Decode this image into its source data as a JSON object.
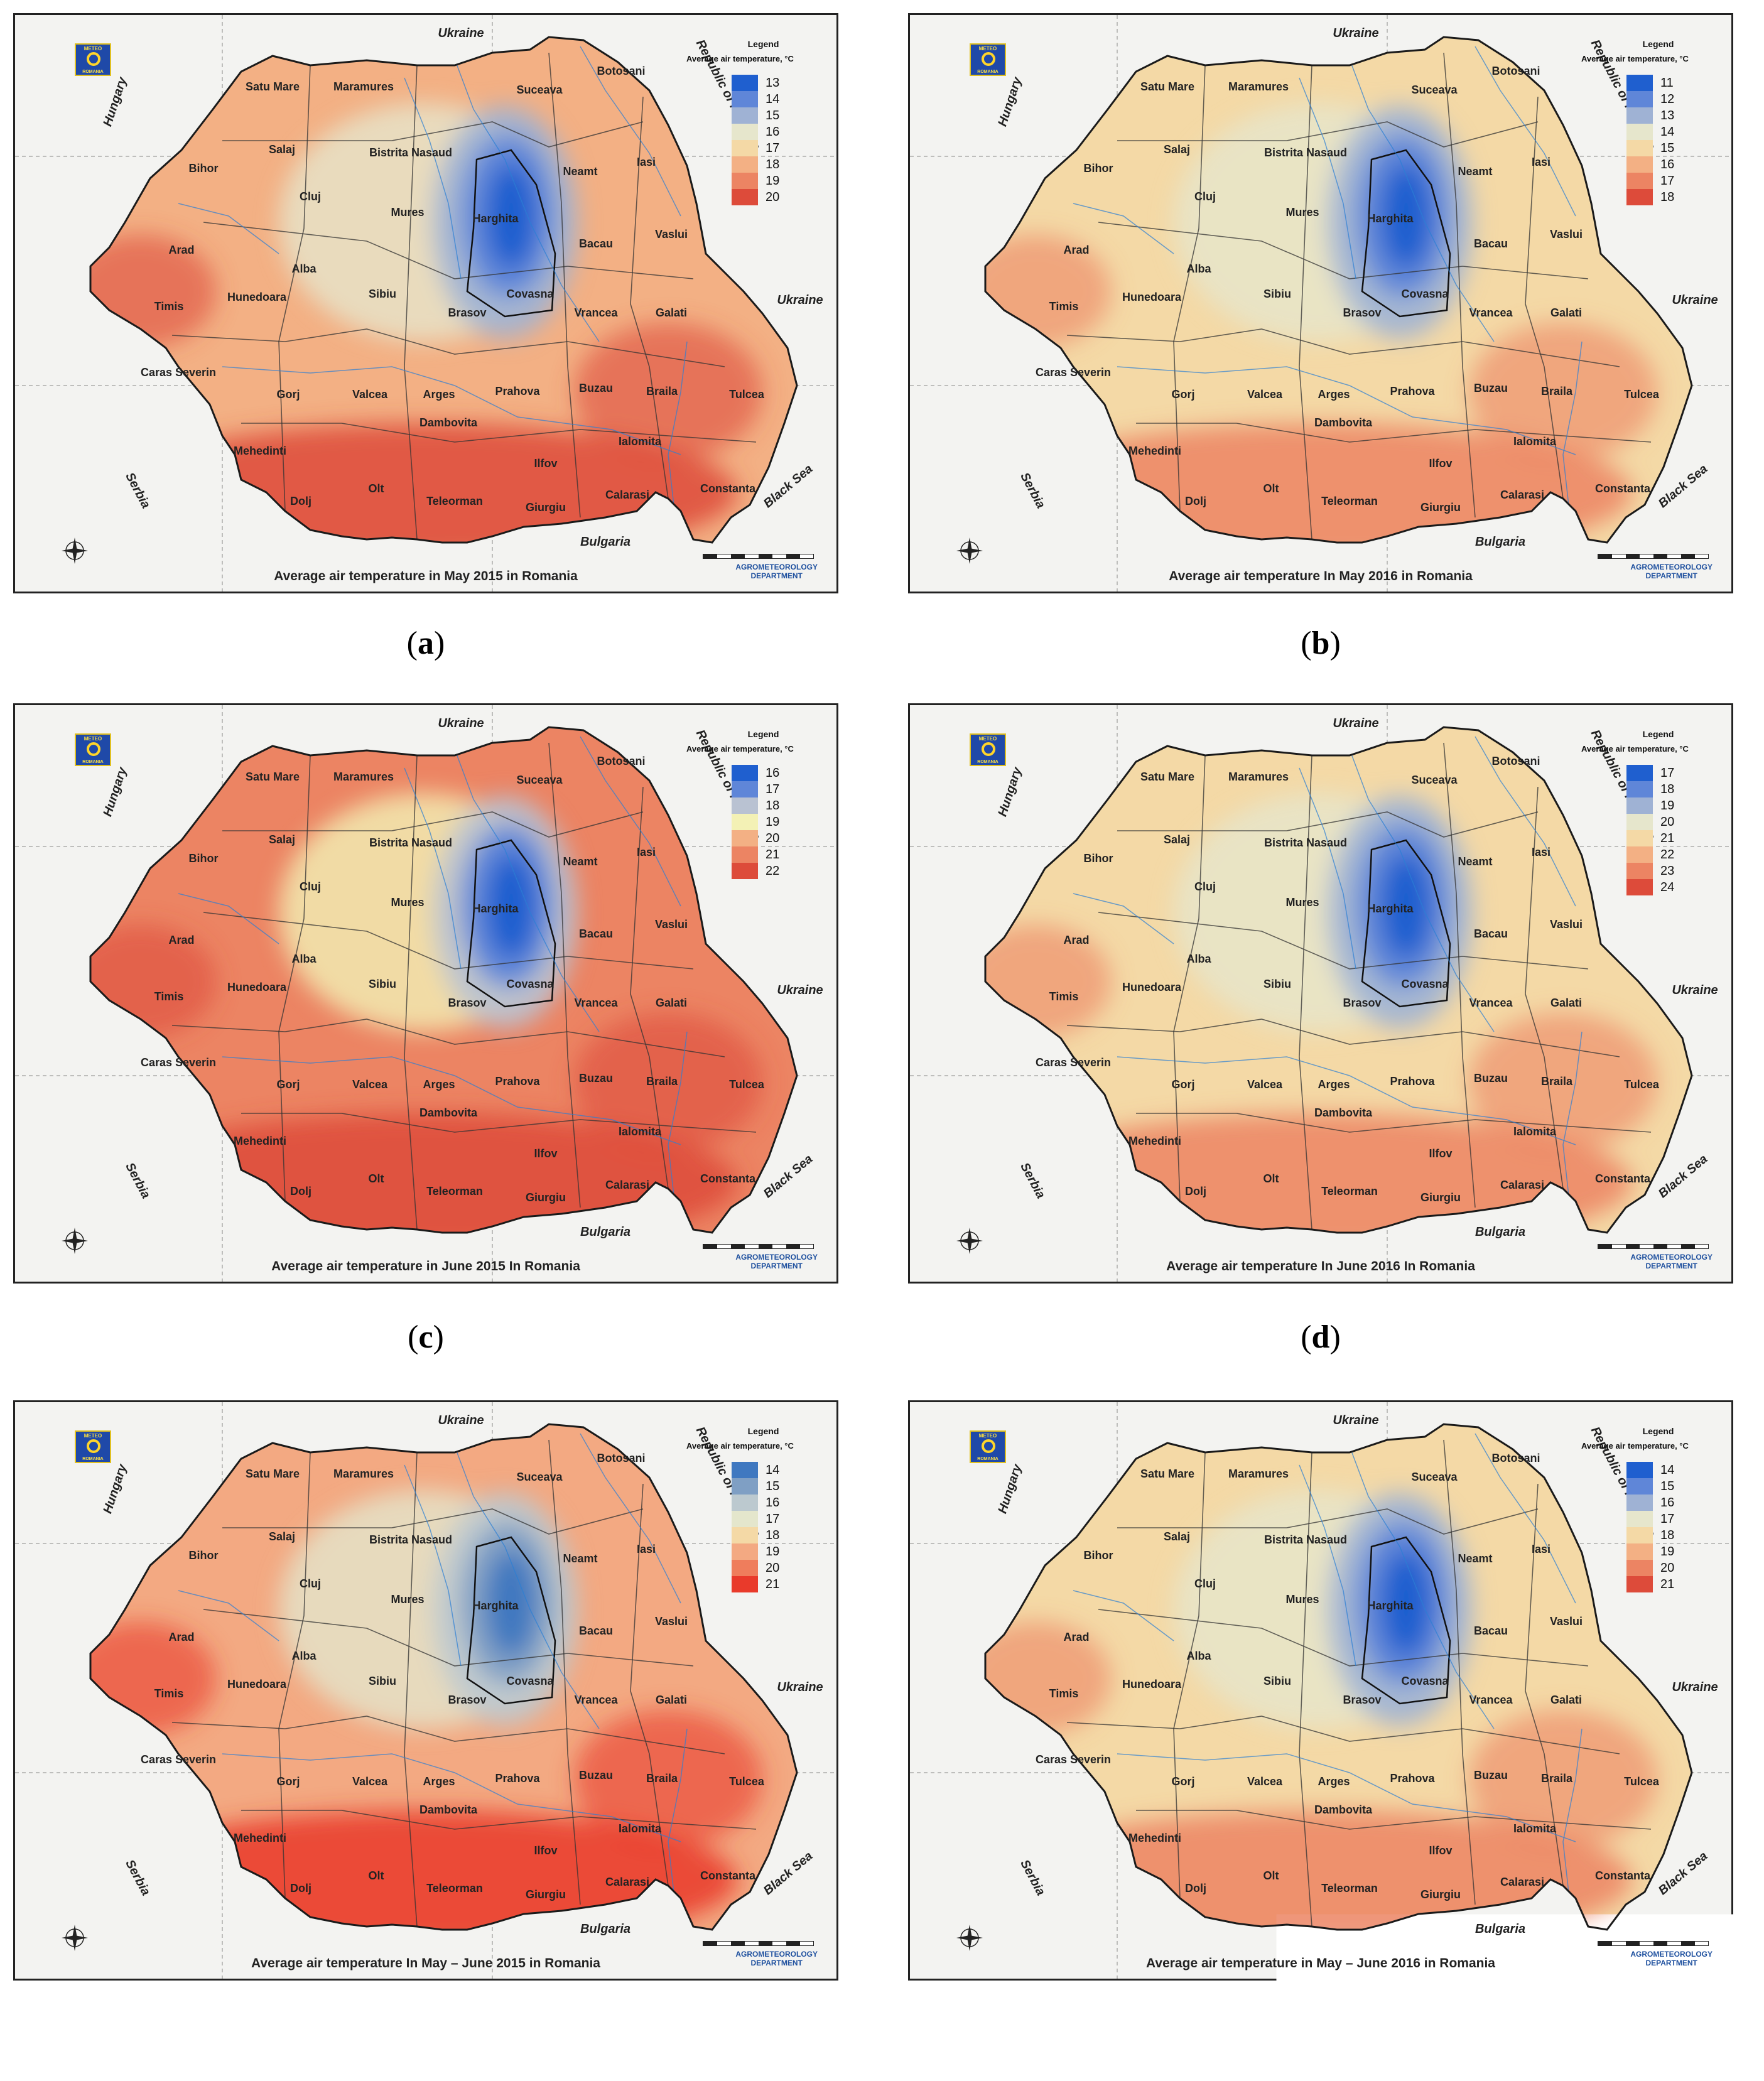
{
  "panels": [
    {
      "letter": "a",
      "caption": "(a)",
      "title": "Average air temperature in May 2015 in Romania",
      "legend": {
        "title": "Legend",
        "subtitle": "Average air temperature, °C",
        "classes": [
          {
            "v": "13",
            "c": "#1f5fcf"
          },
          {
            "v": "14",
            "c": "#5f86d8"
          },
          {
            "v": "15",
            "c": "#9fb2d4"
          },
          {
            "v": "16",
            "c": "#e6e6cc"
          },
          {
            "v": "17",
            "c": "#f4d9a6"
          },
          {
            "v": "18",
            "c": "#f3b084"
          },
          {
            "v": "19",
            "c": "#ec8463"
          },
          {
            "v": "20",
            "c": "#dd4b3a"
          }
        ]
      },
      "dominant_temp": "18",
      "coldest_temp": "13",
      "warmest_temp": "20"
    },
    {
      "letter": "b",
      "caption": "(b)",
      "title": "Average air temperature In May 2016 in Romania",
      "legend": {
        "title": "Legend",
        "subtitle": "Average air temperature, °C",
        "classes": [
          {
            "v": "11",
            "c": "#1f5fcf"
          },
          {
            "v": "12",
            "c": "#5f86d8"
          },
          {
            "v": "13",
            "c": "#9fb2d4"
          },
          {
            "v": "14",
            "c": "#e6e6cc"
          },
          {
            "v": "15",
            "c": "#f4d9a6"
          },
          {
            "v": "16",
            "c": "#f3b084"
          },
          {
            "v": "17",
            "c": "#ec8463"
          },
          {
            "v": "18",
            "c": "#dd4b3a"
          }
        ]
      },
      "dominant_temp": "15",
      "coldest_temp": "11",
      "warmest_temp": "17"
    },
    {
      "letter": "c",
      "caption": "(c)",
      "title": "Average air temperature in June 2015 In Romania",
      "legend": {
        "title": "Legend",
        "subtitle": "Average air temperature, °C",
        "classes": [
          {
            "v": "16",
            "c": "#1f5fcf"
          },
          {
            "v": "17",
            "c": "#5f86d8"
          },
          {
            "v": "18",
            "c": "#b9c2d2"
          },
          {
            "v": "19",
            "c": "#f3f1b5"
          },
          {
            "v": "20",
            "c": "#f3b084"
          },
          {
            "v": "21",
            "c": "#ec8463"
          },
          {
            "v": "22",
            "c": "#dd4b3a"
          }
        ]
      },
      "dominant_temp": "21",
      "coldest_temp": "16",
      "warmest_temp": "22"
    },
    {
      "letter": "d",
      "caption": "(d)",
      "title": "Average air temperature In June 2016 In Romania",
      "legend": {
        "title": "Legend",
        "subtitle": "Average air temperature, °C",
        "classes": [
          {
            "v": "17",
            "c": "#1f5fcf"
          },
          {
            "v": "18",
            "c": "#5f86d8"
          },
          {
            "v": "19",
            "c": "#9fb2d4"
          },
          {
            "v": "20",
            "c": "#e6e6cc"
          },
          {
            "v": "21",
            "c": "#f4d9a6"
          },
          {
            "v": "22",
            "c": "#f3b084"
          },
          {
            "v": "23",
            "c": "#ec8463"
          },
          {
            "v": "24",
            "c": "#dd4b3a"
          }
        ]
      },
      "dominant_temp": "21",
      "coldest_temp": "17",
      "warmest_temp": "23"
    },
    {
      "letter": "e",
      "caption": "(e)",
      "title": "Average air temperature In May – June 2015 in Romania",
      "legend": {
        "title": "Legend",
        "subtitle": "Average air temperature, °C",
        "classes": [
          {
            "v": "14",
            "c": "#3f78c0"
          },
          {
            "v": "15",
            "c": "#7f9fc4"
          },
          {
            "v": "16",
            "c": "#bcc9cf"
          },
          {
            "v": "17",
            "c": "#e4e6cc"
          },
          {
            "v": "18",
            "c": "#f4d9a6"
          },
          {
            "v": "19",
            "c": "#f3a982"
          },
          {
            "v": "20",
            "c": "#ef7d5c"
          },
          {
            "v": "21",
            "c": "#e93a2b"
          }
        ]
      },
      "dominant_temp": "19",
      "coldest_temp": "14",
      "warmest_temp": "21"
    },
    {
      "letter": "f",
      "caption": "(f)",
      "title": "Average air temperature in May – June 2016 in Romania",
      "legend": {
        "title": "Legend",
        "subtitle": "Average air temperature, °C",
        "classes": [
          {
            "v": "14",
            "c": "#1f5fcf"
          },
          {
            "v": "15",
            "c": "#5f86d8"
          },
          {
            "v": "16",
            "c": "#9fb2d4"
          },
          {
            "v": "17",
            "c": "#e6e6cc"
          },
          {
            "v": "18",
            "c": "#f4d9a6"
          },
          {
            "v": "19",
            "c": "#f3b084"
          },
          {
            "v": "20",
            "c": "#ec8463"
          },
          {
            "v": "21",
            "c": "#dd4b3a"
          }
        ]
      },
      "dominant_temp": "18",
      "coldest_temp": "14",
      "warmest_temp": "20"
    }
  ],
  "counties": [
    "Satu Mare",
    "Maramures",
    "Suceava",
    "Botosani",
    "Bihor",
    "Salaj",
    "Bistrita Nasaud",
    "Iasi",
    "Neamt",
    "Cluj",
    "Mures",
    "Harghita",
    "Vaslui",
    "Bacau",
    "Arad",
    "Alba",
    "Sibiu",
    "Covasna",
    "Brasov",
    "Vrancea",
    "Galati",
    "Timis",
    "Hunedoara",
    "Caras Severin",
    "Gorj",
    "Valcea",
    "Arges",
    "Prahova",
    "Buzau",
    "Braila",
    "Tulcea",
    "Mehedinti",
    "Dambovita",
    "Ialomita",
    "Ilfov",
    "Calarasi",
    "Constanta",
    "Dolj",
    "Olt",
    "Teleorman",
    "Giurgiu"
  ],
  "countries": {
    "ukraine": "Ukraine",
    "ukraine_east": "Ukraine",
    "moldova": "Republic of Moldova",
    "hungary": "Hungary",
    "serbia": "Serbia",
    "bulgaria": "Bulgaria",
    "black_sea": "Black Sea"
  },
  "logo": {
    "top": "METEO",
    "bottom": "ROMANIA"
  },
  "department": {
    "line1": "AGROMETEOROLOGY",
    "line2": "DEPARTMENT"
  }
}
